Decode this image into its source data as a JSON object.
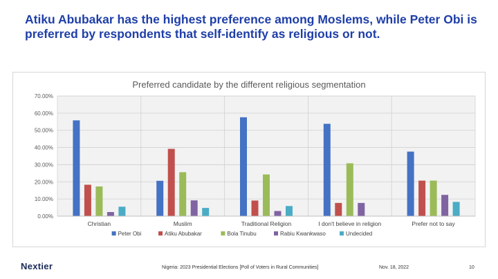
{
  "headline": "Atiku Abubakar has the highest preference among Moslems, while Peter Obi is preferred by respondents that self-identify as religious or not.",
  "footer": {
    "logo": "Nextier",
    "source": "Nigeria: 2023 Presidential Elections [Poll of Voters in Rural Communities]",
    "date": "Nov. 18, 2022",
    "page": "10"
  },
  "chart_data": {
    "type": "bar",
    "title": "Preferred candidate by the different religious segmentation",
    "xlabel": "",
    "ylabel": "",
    "ylim": [
      0,
      70
    ],
    "yticks": [
      "0.00%",
      "10.00%",
      "20.00%",
      "30.00%",
      "40.00%",
      "50.00%",
      "60.00%",
      "70.00%"
    ],
    "grid": true,
    "legend_position": "bottom",
    "categories": [
      "Christian",
      "Muslim",
      "Traditional Religion",
      "I don't believe in religion",
      "Prefer not to say"
    ],
    "series": [
      {
        "name": "Peter Obi",
        "color": "#4472c4",
        "values": [
          55.8,
          20.6,
          57.6,
          53.8,
          37.6
        ]
      },
      {
        "name": "Atiku Abubakar",
        "color": "#c0504d",
        "values": [
          18.3,
          39.2,
          9.1,
          7.7,
          20.7
        ]
      },
      {
        "name": "Bola Tinubu",
        "color": "#9bbb59",
        "values": [
          17.3,
          25.6,
          24.3,
          30.8,
          20.7
        ]
      },
      {
        "name": "Rabiu Kwankwaso",
        "color": "#8064a2",
        "values": [
          2.4,
          9.2,
          3.0,
          7.7,
          12.4
        ]
      },
      {
        "name": "Undecided",
        "color": "#4bacc6",
        "values": [
          5.5,
          4.8,
          5.9,
          0.0,
          8.3
        ]
      }
    ]
  }
}
